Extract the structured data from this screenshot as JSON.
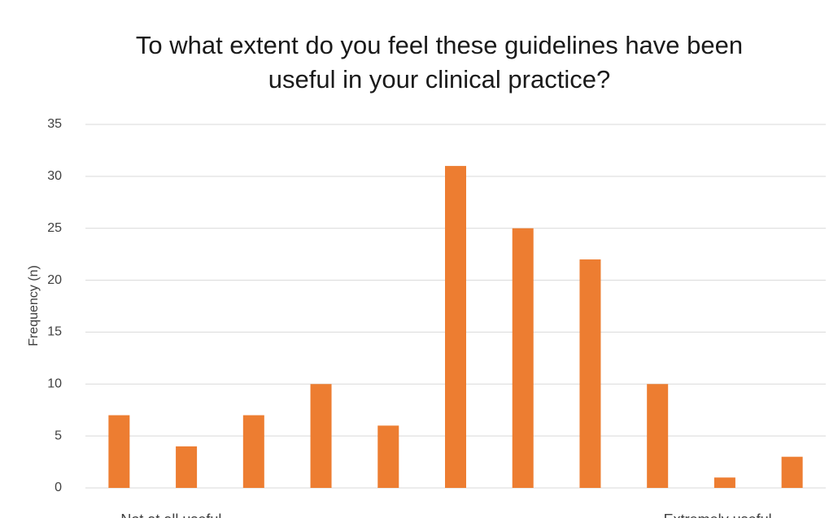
{
  "chart_data": {
    "type": "bar",
    "title": "To what extent do you feel these guidelines have been useful in your clinical practice?",
    "y_label": "Frequency (n)",
    "categories": [
      "Not at all useful",
      null,
      null,
      null,
      null,
      null,
      null,
      null,
      null,
      null,
      "Extremely useful"
    ],
    "values": [
      7,
      4,
      7,
      10,
      6,
      31,
      25,
      22,
      10,
      1,
      3
    ],
    "color": "#ed7d31",
    "ylim": [
      0,
      35
    ],
    "yticks": [
      0,
      5,
      10,
      15,
      20,
      25,
      30,
      35
    ],
    "grid": true
  }
}
